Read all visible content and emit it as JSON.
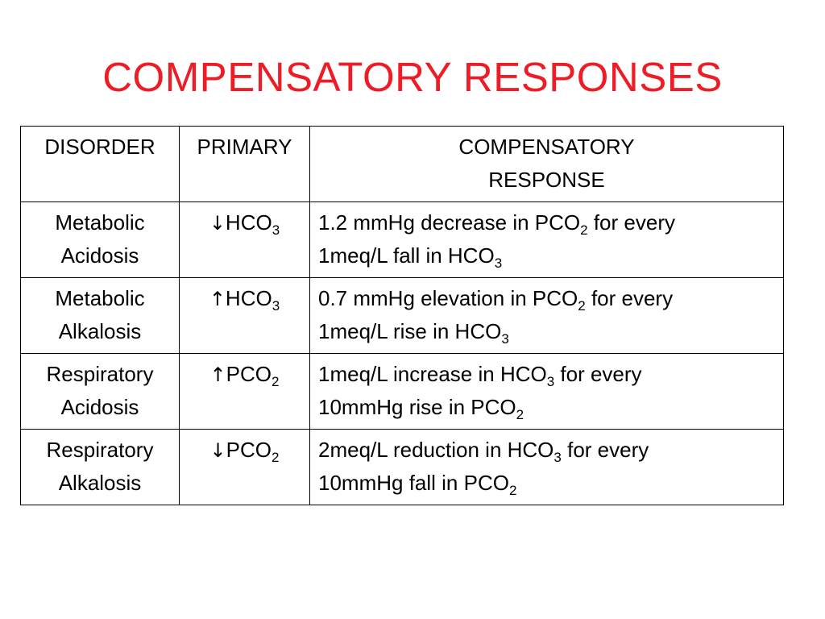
{
  "slide": {
    "title": "COMPENSATORY RESPONSES"
  },
  "table": {
    "headers": {
      "disorder": "DISORDER",
      "primary": "PRIMARY",
      "response_line1": "COMPENSATORY",
      "response_line2": "RESPONSE"
    },
    "rows": [
      {
        "disorder_line1": "Metabolic",
        "disorder_line2": "Acidosis",
        "primary_arrow": "↓",
        "primary_base": "HCO",
        "primary_sub": "3",
        "r1_a": "1.2 mmHg decrease in PCO",
        "r1_sub": "2",
        "r1_b": " for every",
        "r2_a": "1meq/L fall in HCO",
        "r2_sub": "3",
        "r2_b": ""
      },
      {
        "disorder_line1": "Metabolic",
        "disorder_line2": "Alkalosis",
        "primary_arrow": "↑",
        "primary_base": "HCO",
        "primary_sub": "3",
        "r1_a": "0.7 mmHg elevation in PCO",
        "r1_sub": "2",
        "r1_b": " for every",
        "r2_a": "1meq/L rise in HCO",
        "r2_sub": "3",
        "r2_b": ""
      },
      {
        "disorder_line1": "Respiratory",
        "disorder_line2": "Acidosis",
        "primary_arrow": "↑",
        "primary_base": "PCO",
        "primary_sub": "2",
        "r1_a": "1meq/L increase in HCO",
        "r1_sub": "3",
        "r1_b": " for every",
        "r2_a": "10mmHg rise in PCO",
        "r2_sub": "2",
        "r2_b": ""
      },
      {
        "disorder_line1": "Respiratory",
        "disorder_line2": "Alkalosis",
        "primary_arrow": "↓",
        "primary_base": "PCO",
        "primary_sub": "2",
        "r1_a": "2meq/L reduction in HCO",
        "r1_sub": "3",
        "r1_b": " for every",
        "r2_a": "10mmHg fall in PCO",
        "r2_sub": "2",
        "r2_b": ""
      }
    ]
  }
}
